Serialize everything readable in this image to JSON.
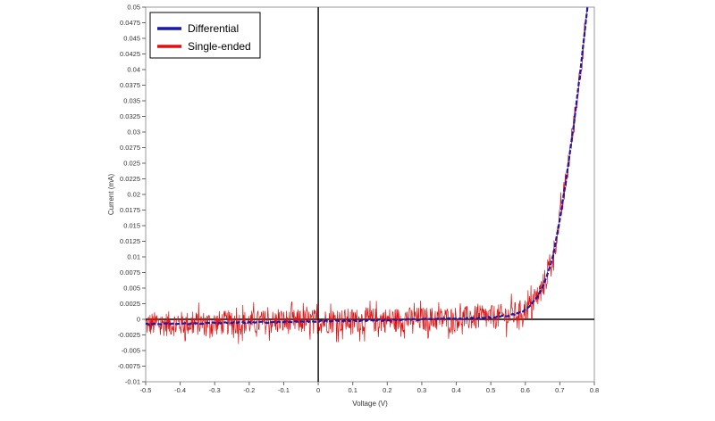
{
  "chart_data": {
    "type": "line",
    "title": "",
    "xlabel": "Voltage (V)",
    "ylabel": "Current (mA)",
    "xlim": [
      -0.5,
      0.8
    ],
    "ylim": [
      -0.01,
      0.05
    ],
    "x_ticks": [
      "-0.5",
      "-0.4",
      "-0.3",
      "-0.2",
      "-0.1",
      "0",
      "0.1",
      "0.2",
      "0.3",
      "0.4",
      "0.5",
      "0.6",
      "0.7",
      "0.8"
    ],
    "y_ticks": [
      "-0.01",
      "-0.0075",
      "-0.005",
      "-0.0025",
      "0",
      "0.0025",
      "0.005",
      "0.0075",
      "0.01",
      "0.0125",
      "0.015",
      "0.0175",
      "0.02",
      "0.0225",
      "0.025",
      "0.0275",
      "0.03",
      "0.0325",
      "0.035",
      "0.0375",
      "0.04",
      "0.0425",
      "0.045",
      "0.0475",
      "0.05"
    ],
    "grid": false,
    "legend": {
      "position": "top-left"
    },
    "series": [
      {
        "name": "Differential",
        "color": "#1a1aa8",
        "x": [
          -0.5,
          -0.4,
          -0.3,
          -0.2,
          -0.1,
          0,
          0.1,
          0.2,
          0.3,
          0.4,
          0.45,
          0.5,
          0.55,
          0.58,
          0.6,
          0.62,
          0.64,
          0.66,
          0.68,
          0.7,
          0.72,
          0.74,
          0.76,
          0.78
        ],
        "values": [
          -0.0008,
          -0.0007,
          -0.0006,
          -0.0005,
          -0.0004,
          -0.0003,
          -0.0002,
          -0.0001,
          0,
          0.0001,
          0.0002,
          0.0003,
          0.0006,
          0.001,
          0.0015,
          0.0025,
          0.004,
          0.0065,
          0.01,
          0.016,
          0.023,
          0.031,
          0.04,
          0.05
        ]
      },
      {
        "name": "Single-ended",
        "color": "#e01010",
        "x": [
          -0.5,
          -0.4,
          -0.3,
          -0.2,
          -0.1,
          0,
          0.1,
          0.2,
          0.3,
          0.4,
          0.45,
          0.5,
          0.55,
          0.58,
          0.6,
          0.62,
          0.64,
          0.66,
          0.68,
          0.7,
          0.72,
          0.74,
          0.76,
          0.78
        ],
        "values": [
          -0.0008,
          -0.0007,
          -0.0006,
          -0.0005,
          -0.0004,
          -0.0003,
          -0.0002,
          -0.0001,
          0,
          0.0001,
          0.0002,
          0.0003,
          0.0006,
          0.001,
          0.0015,
          0.0025,
          0.004,
          0.0065,
          0.01,
          0.016,
          0.023,
          0.031,
          0.04,
          0.05
        ],
        "noise_amplitude": 0.0025
      }
    ]
  }
}
